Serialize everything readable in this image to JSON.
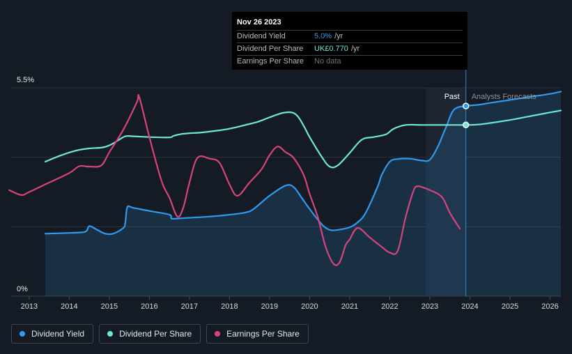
{
  "tooltip": {
    "date": "Nov 26 2023",
    "rows": [
      {
        "label": "Dividend Yield",
        "value": "5.0%",
        "unit": "/yr",
        "color": "#2f9bef"
      },
      {
        "label": "Dividend Per Share",
        "value": "UK£0.770",
        "unit": "/yr",
        "color": "#6ee8d0"
      },
      {
        "label": "Earnings Per Share",
        "value": "",
        "unit": "",
        "nodata": "No data"
      }
    ]
  },
  "regions": {
    "past_label": "Past",
    "forecast_label": "Analysts Forecasts"
  },
  "legend": [
    {
      "label": "Dividend Yield",
      "color": "#2f9bef"
    },
    {
      "label": "Dividend Per Share",
      "color": "#6ee8d0"
    },
    {
      "label": "Earnings Per Share",
      "color": "#d6447e"
    }
  ],
  "chart_data": {
    "type": "line",
    "y_axis_labels": [
      "5.5%",
      "0%"
    ],
    "ylim": [
      0,
      5.5
    ],
    "xlim": [
      2012.55,
      2026.27
    ],
    "x_ticks": [
      "2013",
      "2014",
      "2015",
      "2016",
      "2017",
      "2018",
      "2019",
      "2020",
      "2021",
      "2022",
      "2023",
      "2024",
      "2025",
      "2026"
    ],
    "past_forecast_boundary": 2023.9,
    "shaded_forecast_start": 2022.9,
    "grid": true,
    "series": [
      {
        "name": "Dividend Yield",
        "color": "#2f9bef",
        "unit": "%",
        "filled": true,
        "x": [
          2013.4,
          2014.0,
          2014.4,
          2014.5,
          2014.7,
          2014.9,
          2015.1,
          2015.35,
          2015.4,
          2015.45,
          2015.6,
          2016.0,
          2016.5,
          2016.55,
          2016.7,
          2017.0,
          2017.5,
          2018.0,
          2018.4,
          2018.6,
          2019.0,
          2019.4,
          2019.6,
          2019.8,
          2020.0,
          2020.3,
          2020.5,
          2020.7,
          2021.0,
          2021.2,
          2021.4,
          2021.7,
          2021.8,
          2022.0,
          2022.2,
          2022.5,
          2022.8,
          2023.0,
          2023.2,
          2023.4,
          2023.6,
          2023.9,
          2024.2,
          2024.5,
          2025.0,
          2025.5,
          2026.0,
          2026.27
        ],
        "y": [
          1.65,
          1.67,
          1.7,
          1.85,
          1.75,
          1.65,
          1.65,
          1.8,
          1.95,
          2.35,
          2.33,
          2.25,
          2.15,
          2.05,
          2.05,
          2.07,
          2.1,
          2.15,
          2.21,
          2.3,
          2.65,
          2.92,
          2.88,
          2.6,
          2.3,
          1.9,
          1.75,
          1.75,
          1.82,
          1.95,
          2.2,
          2.9,
          3.2,
          3.55,
          3.62,
          3.63,
          3.58,
          3.6,
          3.95,
          4.45,
          4.92,
          5.02,
          5.05,
          5.1,
          5.18,
          5.26,
          5.34,
          5.4
        ]
      },
      {
        "name": "Dividend Per Share",
        "color": "#6ee8d0",
        "unit": "UK£",
        "x": [
          2013.4,
          2013.8,
          2014.2,
          2014.5,
          2014.8,
          2015.0,
          2015.2,
          2015.4,
          2015.6,
          2016.0,
          2016.5,
          2016.6,
          2016.8,
          2017.0,
          2017.3,
          2017.7,
          2018.0,
          2018.4,
          2018.7,
          2019.0,
          2019.3,
          2019.55,
          2019.7,
          2019.85,
          2020.0,
          2020.3,
          2020.5,
          2020.7,
          2021.0,
          2021.3,
          2021.6,
          2021.9,
          2022.1,
          2022.4,
          2022.8,
          2023.2,
          2023.6,
          2023.9,
          2024.2,
          2024.5,
          2025.0,
          2025.5,
          2026.0,
          2026.27
        ],
        "y": [
          3.55,
          3.72,
          3.85,
          3.9,
          3.92,
          3.98,
          4.1,
          4.22,
          4.22,
          4.2,
          4.19,
          4.23,
          4.28,
          4.3,
          4.32,
          4.37,
          4.42,
          4.52,
          4.6,
          4.72,
          4.83,
          4.85,
          4.75,
          4.5,
          4.2,
          3.68,
          3.42,
          3.45,
          3.78,
          4.13,
          4.2,
          4.27,
          4.42,
          4.52,
          4.52,
          4.52,
          4.52,
          4.52,
          4.53,
          4.57,
          4.65,
          4.75,
          4.85,
          4.9
        ]
      },
      {
        "name": "Earnings Per Share",
        "color": "#d6447e",
        "unit": "UK£",
        "x": [
          2012.5,
          2012.8,
          2013.0,
          2013.4,
          2014.0,
          2014.25,
          2014.5,
          2014.8,
          2015.0,
          2015.3,
          2015.5,
          2015.7,
          2015.75,
          2016.0,
          2016.3,
          2016.5,
          2016.7,
          2016.85,
          2017.0,
          2017.2,
          2017.5,
          2017.75,
          2018.0,
          2018.2,
          2018.5,
          2018.8,
          2019.0,
          2019.2,
          2019.4,
          2019.6,
          2019.85,
          2020.0,
          2020.2,
          2020.4,
          2020.6,
          2020.75,
          2020.9,
          2021.0,
          2021.2,
          2021.5,
          2021.8,
          2022.0,
          2022.2,
          2022.4,
          2022.6,
          2022.7,
          2022.8,
          2023.0,
          2023.3,
          2023.5,
          2023.75
        ],
        "y": [
          2.8,
          2.67,
          2.75,
          2.95,
          3.25,
          3.43,
          3.42,
          3.45,
          3.8,
          4.3,
          4.7,
          5.15,
          5.25,
          4.2,
          3.05,
          2.6,
          2.1,
          2.35,
          3.0,
          3.65,
          3.63,
          3.52,
          2.95,
          2.65,
          3.0,
          3.35,
          3.72,
          3.95,
          3.8,
          3.65,
          3.2,
          2.7,
          2.1,
          1.3,
          0.85,
          0.9,
          1.35,
          1.5,
          1.8,
          1.55,
          1.3,
          1.15,
          1.2,
          2.1,
          2.8,
          2.9,
          2.88,
          2.8,
          2.62,
          2.2,
          1.78
        ]
      }
    ]
  }
}
